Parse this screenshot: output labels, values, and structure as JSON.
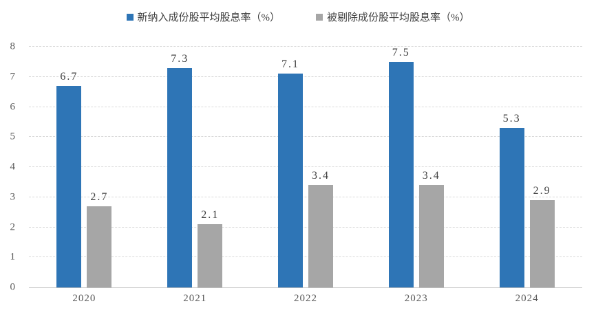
{
  "chart_data": {
    "type": "bar",
    "title": "",
    "categories": [
      "2020",
      "2021",
      "2022",
      "2023",
      "2024"
    ],
    "series": [
      {
        "name": "新纳入成份股平均股息率（%）",
        "color": "#2E75B6",
        "values": [
          6.7,
          7.3,
          7.1,
          7.5,
          5.3
        ]
      },
      {
        "name": "被剔除成份股平均股息率（%）",
        "color": "#A6A6A6",
        "values": [
          2.7,
          2.1,
          3.4,
          3.4,
          2.9
        ]
      }
    ],
    "ylim": [
      0,
      8
    ],
    "ytick_step": 1,
    "yticks": [
      "0",
      "1",
      "2",
      "3",
      "4",
      "5",
      "6",
      "7",
      "8"
    ],
    "grid": true,
    "legend_position": "top",
    "data_labels": true
  },
  "colors": {
    "gridline": "#D9D9D9",
    "axis_line": "#BFBFBF",
    "tick_label": "#595959",
    "data_label": "#404040",
    "background": "#FFFFFF"
  }
}
